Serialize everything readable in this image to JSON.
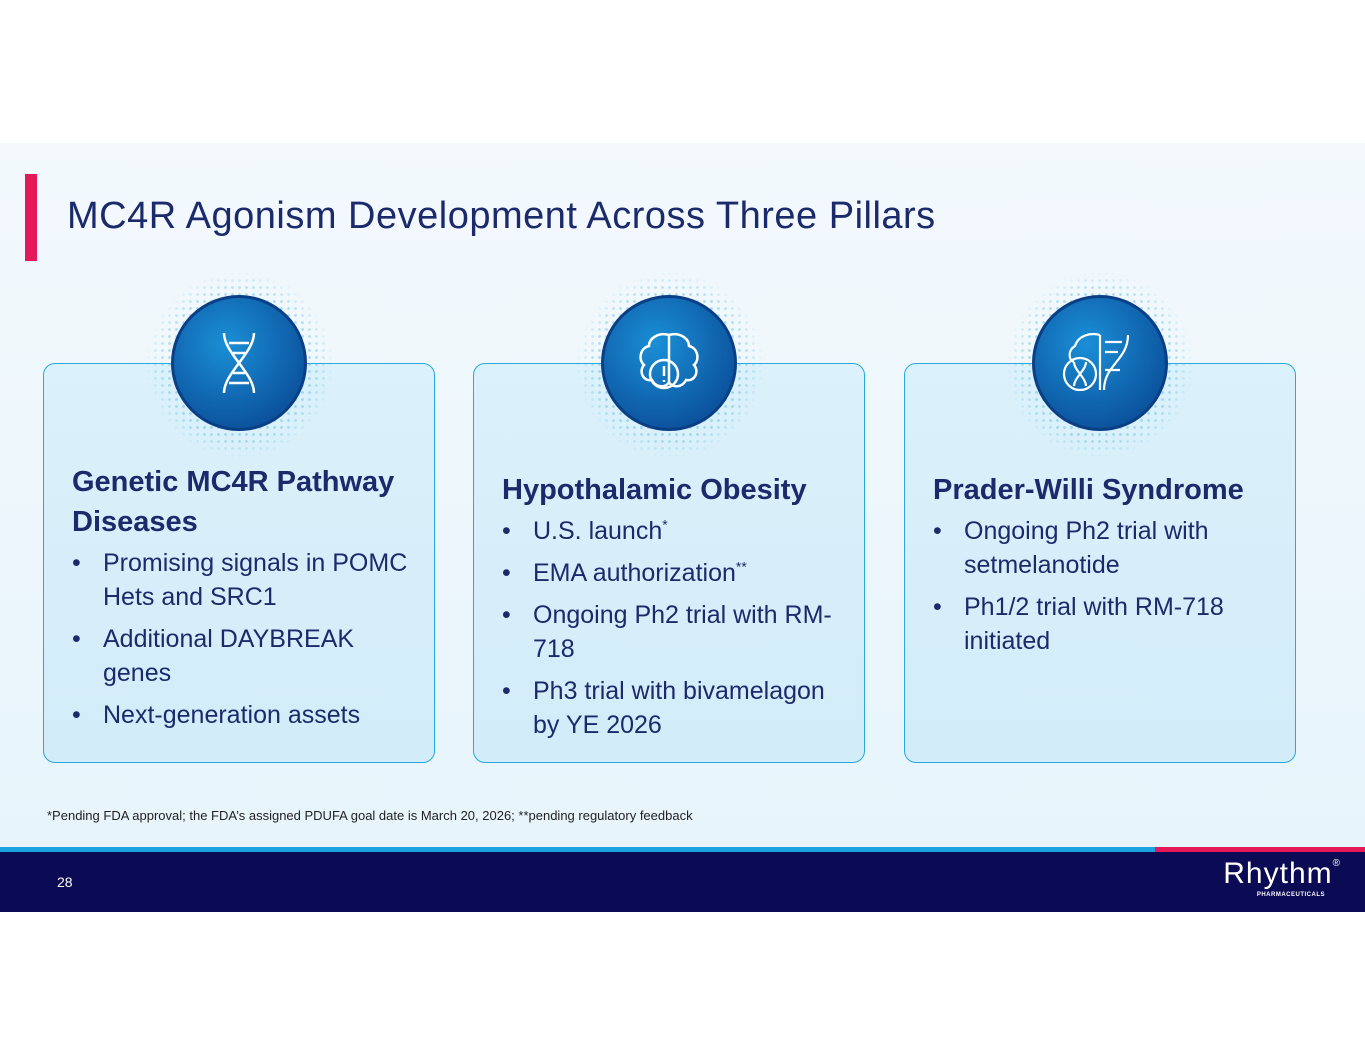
{
  "title": "MC4R Agonism Development Across Three Pillars",
  "cards": [
    {
      "icon": "dna-icon",
      "title": "Genetic MC4R Pathway Diseases",
      "bullets": [
        "Promising signals in POMC Hets and SRC1",
        "Additional DAYBREAK genes",
        "Next-generation assets"
      ]
    },
    {
      "icon": "brain-alert-icon",
      "title": "Hypothalamic Obesity",
      "bullets": [
        "U.S. launch",
        "EMA authorization",
        "Ongoing Ph2 trial with RM-718",
        "Ph3 trial with bivamelagon by YE 2026"
      ],
      "marks": [
        "*",
        "**"
      ]
    },
    {
      "icon": "brain-dna-icon",
      "title": "Prader-Willi Syndrome",
      "bullets": [
        "Ongoing Ph2 trial with setmelanotide",
        "Ph1/2 trial with RM-718 initiated"
      ]
    }
  ],
  "footnote": "*Pending FDA approval; the FDA’s assigned PDUFA goal date is March 20, 2026; **pending regulatory feedback",
  "page_number": "28",
  "logo": {
    "name": "Rhythm",
    "reg": "®",
    "sub": "PHARMACEUTICALS"
  },
  "colors": {
    "navy": "#1b2a6b",
    "accent": "#e5195a",
    "cyan": "#1aa3dc",
    "footer": "#0a0a55"
  }
}
